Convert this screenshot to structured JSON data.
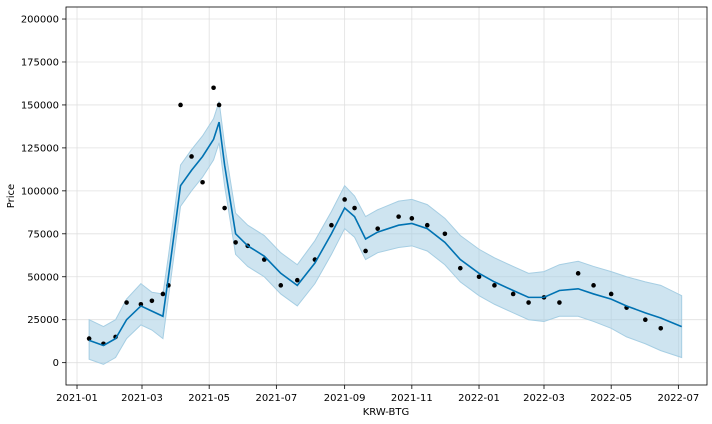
{
  "chart_data": {
    "type": "scatter",
    "title": "",
    "xlabel": "KRW-BTG",
    "ylabel": "Price",
    "grid": true,
    "legend": "none",
    "xlim": [
      "2020-12-22",
      "2022-07-27"
    ],
    "ylim": [
      -13000,
      207000
    ],
    "x_ticks": [
      "2021-01",
      "2021-03",
      "2021-05",
      "2021-07",
      "2021-09",
      "2021-11",
      "2022-01",
      "2022-03",
      "2022-05",
      "2022-07"
    ],
    "y_ticks": [
      0,
      25000,
      50000,
      75000,
      100000,
      125000,
      150000,
      175000,
      200000
    ],
    "y_tick_labels": [
      "0",
      "25000",
      "50000",
      "75000",
      "100000",
      "125000",
      "150000",
      "175000",
      "200000"
    ],
    "series": [
      {
        "kind": "forecast",
        "x": [
          "2021-01-12",
          "2021-01-25",
          "2021-02-05",
          "2021-02-15",
          "2021-02-28",
          "2021-03-10",
          "2021-03-20",
          "2021-03-25",
          "2021-04-05",
          "2021-04-15",
          "2021-04-25",
          "2021-05-05",
          "2021-05-10",
          "2021-05-15",
          "2021-05-25",
          "2021-06-05",
          "2021-06-20",
          "2021-07-05",
          "2021-07-20",
          "2021-08-05",
          "2021-08-20",
          "2021-09-01",
          "2021-09-10",
          "2021-09-20",
          "2021-10-01",
          "2021-10-20",
          "2021-11-01",
          "2021-11-15",
          "2021-12-01",
          "2021-12-15",
          "2022-01-01",
          "2022-01-15",
          "2022-02-01",
          "2022-02-15",
          "2022-03-01",
          "2022-03-15",
          "2022-04-01",
          "2022-04-15",
          "2022-05-01",
          "2022-05-15",
          "2022-06-01",
          "2022-06-15",
          "2022-07-04"
        ],
        "yhat": [
          13000,
          10000,
          14000,
          25000,
          33000,
          30000,
          27000,
          50000,
          103000,
          112000,
          120000,
          130000,
          140000,
          115000,
          75000,
          68000,
          62000,
          52000,
          45000,
          58000,
          75000,
          90000,
          85000,
          72000,
          76000,
          80000,
          81000,
          78000,
          70000,
          60000,
          52000,
          47000,
          42000,
          38000,
          38000,
          42000,
          43000,
          40000,
          37000,
          33000,
          29000,
          26000,
          21000
        ],
        "yhat_lower": [
          2000,
          -1000,
          3000,
          14000,
          22000,
          19000,
          14000,
          38000,
          91000,
          100000,
          108000,
          118000,
          128000,
          103000,
          63000,
          56000,
          50000,
          40000,
          33000,
          46000,
          63000,
          78000,
          73000,
          60000,
          64000,
          67000,
          68000,
          65000,
          57000,
          47000,
          39000,
          34000,
          29000,
          25000,
          24000,
          27000,
          27000,
          24000,
          20000,
          15000,
          11000,
          7000,
          3000
        ],
        "yhat_upper": [
          25000,
          21000,
          25000,
          37000,
          46000,
          41000,
          40000,
          62000,
          115000,
          124000,
          132000,
          142000,
          152000,
          127000,
          87000,
          80000,
          74000,
          64000,
          57000,
          71000,
          88000,
          103000,
          97000,
          85000,
          89000,
          94000,
          95000,
          92000,
          84000,
          74000,
          66000,
          61000,
          56000,
          52000,
          53000,
          57000,
          59000,
          56000,
          53000,
          50000,
          47000,
          45000,
          39000
        ],
        "color": "#0072b2",
        "band_color": "#a6cee3"
      },
      {
        "kind": "observed",
        "x": [
          "2021-01-12",
          "2021-01-25",
          "2021-02-05",
          "2021-02-15",
          "2021-02-28",
          "2021-03-10",
          "2021-03-20",
          "2021-03-25",
          "2021-04-05",
          "2021-04-15",
          "2021-04-25",
          "2021-05-05",
          "2021-05-10",
          "2021-05-15",
          "2021-05-25",
          "2021-06-05",
          "2021-06-20",
          "2021-07-05",
          "2021-07-20",
          "2021-08-05",
          "2021-08-20",
          "2021-09-01",
          "2021-09-10",
          "2021-09-20",
          "2021-10-01",
          "2021-10-20",
          "2021-11-01",
          "2021-11-15",
          "2021-12-01",
          "2021-12-15",
          "2022-01-01",
          "2022-01-15",
          "2022-02-01",
          "2022-02-15",
          "2022-03-01",
          "2022-03-15",
          "2022-04-01",
          "2022-04-15",
          "2022-05-01",
          "2022-05-15",
          "2022-06-01",
          "2022-06-15"
        ],
        "y": [
          14000,
          11000,
          15000,
          35000,
          34000,
          36000,
          40000,
          45000,
          150000,
          120000,
          105000,
          160000,
          150000,
          90000,
          70000,
          68000,
          60000,
          45000,
          48000,
          60000,
          80000,
          95000,
          90000,
          65000,
          78000,
          85000,
          84000,
          80000,
          75000,
          55000,
          50000,
          45000,
          40000,
          35000,
          38000,
          35000,
          52000,
          45000,
          40000,
          32000,
          25000,
          20000
        ],
        "color": "#000000"
      }
    ]
  }
}
